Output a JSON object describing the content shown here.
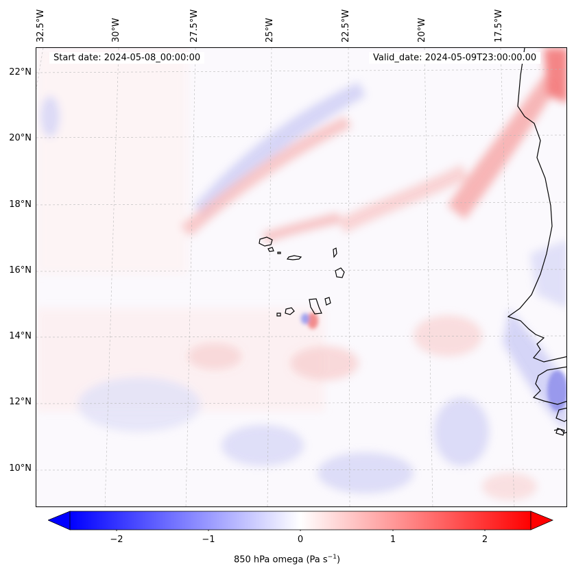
{
  "map": {
    "start_date": "Start date: 2024-05-08_00:00:00",
    "valid_date": "Valid_date: 2024-05-09T23:00:00.00",
    "longitude_labels": [
      "32.5°W",
      "30°W",
      "27.5°W",
      "25°W",
      "22.5°W",
      "20°W",
      "17.5°W"
    ],
    "latitude_labels": [
      "22°N",
      "20°N",
      "18°N",
      "16°N",
      "14°N",
      "12°N",
      "10°N"
    ],
    "region": "Cabo Verde and West African coast",
    "features": [
      "coastline",
      "islands",
      "graticule"
    ]
  },
  "colorbar": {
    "ticks": [
      "−2",
      "−1",
      "0",
      "1",
      "2"
    ],
    "tick_values": [
      -2,
      -1,
      0,
      1,
      2
    ],
    "range": [
      -2.5,
      2.5
    ],
    "label_main": "850 hPa omega (Pa s",
    "label_exp": "−1",
    "label_end": ")",
    "colors": {
      "low": "#0000ff",
      "mid": "#ffffff",
      "high": "#ff0000"
    }
  }
}
